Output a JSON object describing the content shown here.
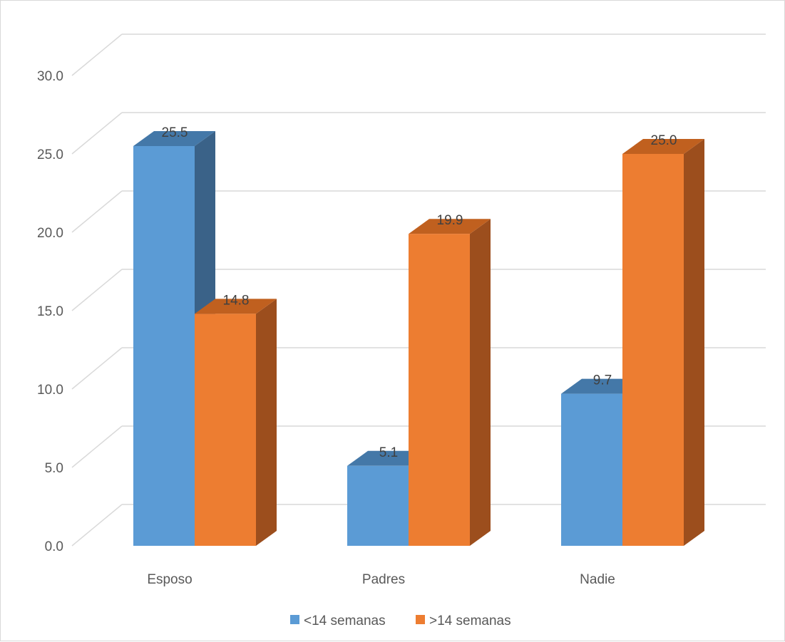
{
  "chart_data": {
    "type": "bar",
    "categories": [
      "Esposo",
      "Padres",
      "Nadie"
    ],
    "series": [
      {
        "name": "<14 semanas",
        "values": [
          25.5,
          5.1,
          9.7
        ],
        "color": "#5b9bd5",
        "side_color": "#3a6288",
        "top_color": "#4478a8"
      },
      {
        "name": ">14 semanas",
        "values": [
          14.8,
          19.9,
          25.0
        ],
        "color": "#ed7d31",
        "side_color": "#9c4e1d",
        "top_color": "#c0601f"
      }
    ],
    "title": "",
    "xlabel": "",
    "ylabel": "",
    "ylim": [
      0,
      30
    ],
    "yticks": [
      "0.0",
      "5.0",
      "10.0",
      "15.0",
      "20.0",
      "25.0",
      "30.0"
    ],
    "data_labels": [
      "25.5",
      "5.1",
      "9.7",
      "14.8",
      "19.9",
      "25.0"
    ],
    "grid": true,
    "legend_position": "bottom",
    "style": "3d-clustered"
  }
}
